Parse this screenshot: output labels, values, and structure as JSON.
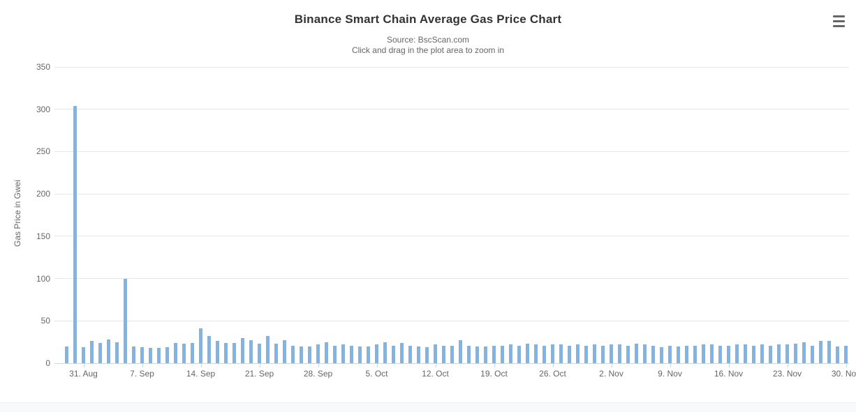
{
  "header": {
    "title": "Binance Smart Chain Average Gas Price Chart",
    "subtitle_source": "Source: BscScan.com",
    "subtitle_hint": "Click and drag in the plot area to zoom in",
    "menu_icon": "hamburger-icon"
  },
  "colors": {
    "bar": "#7cb5ec",
    "gridline": "#e6e6e6",
    "axis_line": "#ccd6eb",
    "title_text": "#333333",
    "muted_text": "#666666",
    "background": "#ffffff",
    "footer_band": "#f8f9fa"
  },
  "chart_data": {
    "type": "bar",
    "title": "Binance Smart Chain Average Gas Price Chart",
    "subtitle": [
      "Source: BscScan.com",
      "Click and drag in the plot area to zoom in"
    ],
    "xlabel": "",
    "ylabel": "Gas Price in Gwei",
    "unit": "Gwei",
    "ylim": [
      0,
      350
    ],
    "yticks": [
      0,
      50,
      100,
      150,
      200,
      250,
      300,
      350
    ],
    "grid": "horizontal-only",
    "legend": "none",
    "n_points": 94,
    "xticks": [
      {
        "day": 3,
        "label": "31. Aug"
      },
      {
        "day": 10,
        "label": "7. Sep"
      },
      {
        "day": 17,
        "label": "14. Sep"
      },
      {
        "day": 24,
        "label": "21. Sep"
      },
      {
        "day": 31,
        "label": "28. Sep"
      },
      {
        "day": 38,
        "label": "5. Oct"
      },
      {
        "day": 45,
        "label": "12. Oct"
      },
      {
        "day": 52,
        "label": "19. Oct"
      },
      {
        "day": 59,
        "label": "26. Oct"
      },
      {
        "day": 66,
        "label": "2. Nov"
      },
      {
        "day": 73,
        "label": "9. Nov"
      },
      {
        "day": 80,
        "label": "16. Nov"
      },
      {
        "day": 87,
        "label": "23. Nov"
      },
      {
        "day": 94,
        "label": "30. Nov"
      }
    ],
    "values": [
      20,
      304,
      19,
      26,
      24,
      28,
      25,
      100,
      20,
      19,
      18,
      18,
      19,
      24,
      23,
      24,
      41,
      32,
      26,
      24,
      24,
      30,
      27,
      23,
      32,
      23,
      27,
      21,
      20,
      20,
      22,
      25,
      21,
      22,
      21,
      20,
      20,
      22,
      25,
      21,
      24,
      21,
      20,
      19,
      22,
      21,
      21,
      27,
      21,
      20,
      20,
      21,
      21,
      22,
      21,
      23,
      22,
      21,
      22,
      22,
      21,
      22,
      21,
      22,
      21,
      22,
      22,
      21,
      23,
      22,
      21,
      19,
      21,
      20,
      21,
      21,
      22,
      22,
      21,
      21,
      22,
      22,
      21,
      22,
      21,
      22,
      22,
      23,
      25,
      21,
      26,
      26,
      20,
      21
    ]
  }
}
